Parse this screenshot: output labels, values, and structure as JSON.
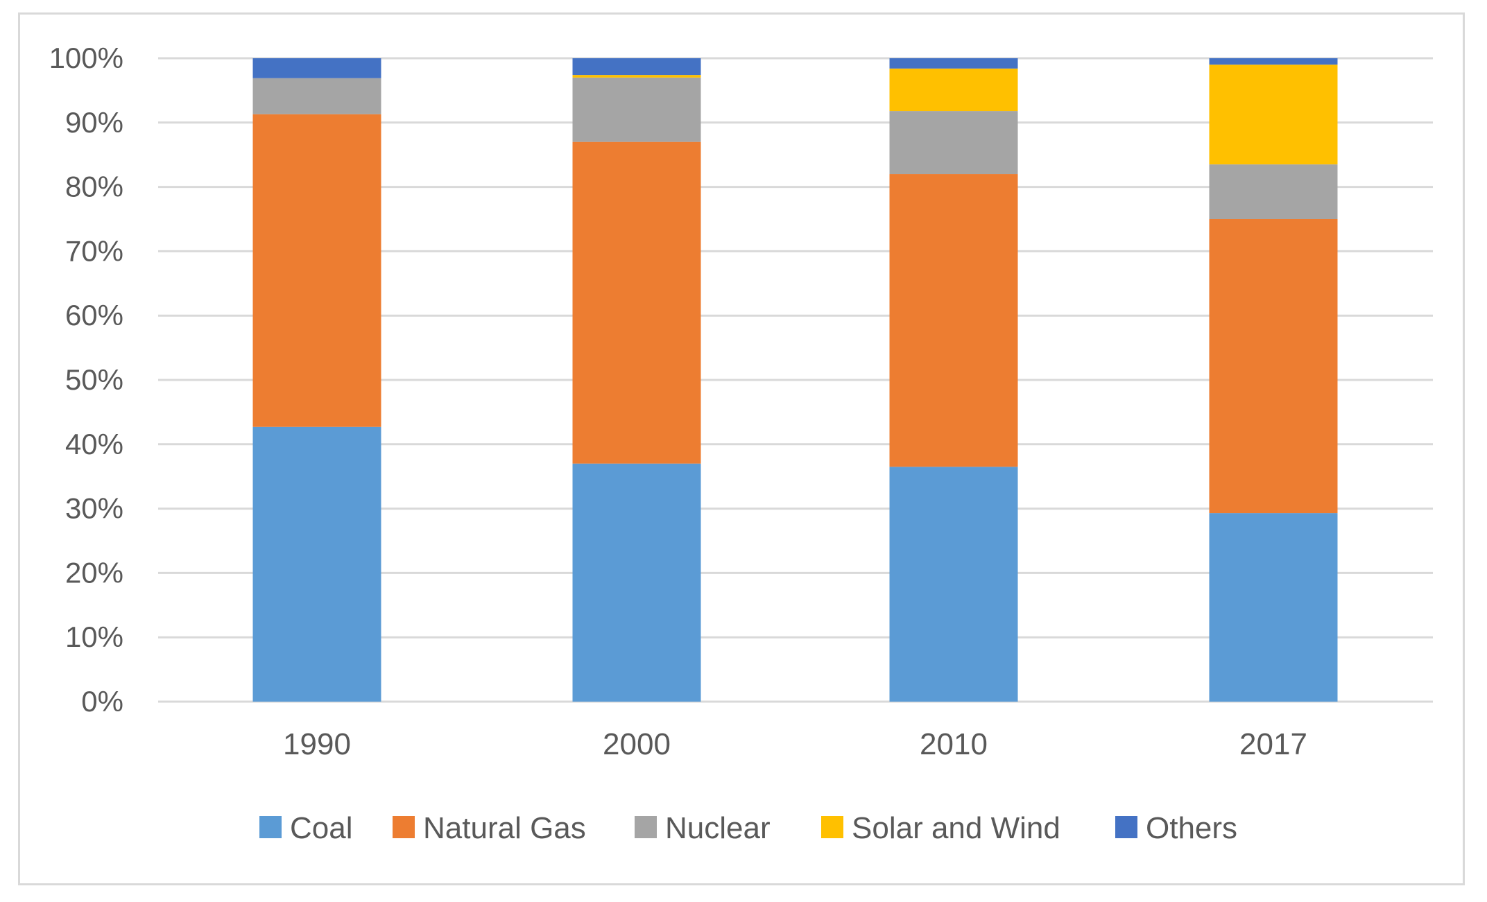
{
  "chart_data": {
    "type": "bar",
    "stacked": true,
    "percent_stacked": true,
    "categories": [
      "1990",
      "2000",
      "2010",
      "2017"
    ],
    "series": [
      {
        "name": "Coal",
        "color": "#5B9BD5",
        "values": [
          42.7,
          37.0,
          36.5,
          29.3
        ]
      },
      {
        "name": "Natural Gas",
        "color": "#ED7D31",
        "values": [
          48.6,
          50.0,
          45.5,
          45.7
        ]
      },
      {
        "name": "Nuclear",
        "color": "#A5A5A5",
        "values": [
          5.6,
          10.0,
          9.8,
          8.5
        ]
      },
      {
        "name": "Solar and Wind",
        "color": "#FFC000",
        "values": [
          0.0,
          0.4,
          6.6,
          15.5
        ]
      },
      {
        "name": "Others",
        "color": "#4472C4",
        "values": [
          3.1,
          2.6,
          1.6,
          1.0
        ]
      }
    ],
    "y_ticks": [
      "0%",
      "10%",
      "20%",
      "30%",
      "40%",
      "50%",
      "60%",
      "70%",
      "80%",
      "90%",
      "100%"
    ],
    "ylim": [
      0,
      100
    ],
    "grid": true,
    "legend_position": "bottom"
  }
}
